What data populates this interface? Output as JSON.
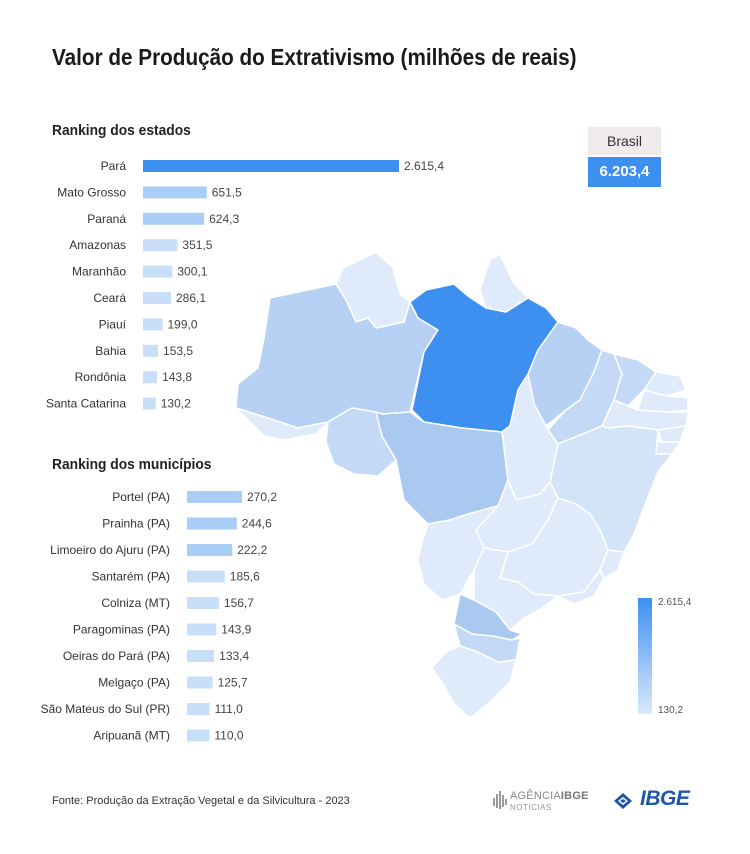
{
  "title": "Valor de Produção do Extrativismo (milhões de reais)",
  "brasil": {
    "label": "Brasil",
    "value": "6.203,4"
  },
  "colors": {
    "bar_top": "#3d8ff0",
    "bar_light": "#a9cdf7",
    "bar_lighter": "#c9def9",
    "map_para": "#3d8ff0",
    "map_high": "#a9c9f1",
    "map_mid": "#c3d9f5",
    "map_low": "#dfeafb"
  },
  "chart_data": [
    {
      "type": "bar",
      "orientation": "horizontal",
      "title": "Ranking dos estados",
      "categories": [
        "Pará",
        "Mato Grosso",
        "Paraná",
        "Amazonas",
        "Maranhão",
        "Ceará",
        "Piauí",
        "Bahia",
        "Rondônia",
        "Santa Catarina"
      ],
      "values": [
        2615.4,
        651.5,
        624.3,
        351.5,
        300.1,
        286.1,
        199.0,
        153.5,
        143.8,
        130.2
      ],
      "labels": [
        "2.615,4",
        "651,5",
        "624,3",
        "351,5",
        "300,1",
        "286,1",
        "199,0",
        "153,5",
        "143,8",
        "130,2"
      ]
    },
    {
      "type": "bar",
      "orientation": "horizontal",
      "title": "Ranking dos municípios",
      "categories": [
        "Portel (PA)",
        "Prainha (PA)",
        "Limoeiro do Ajuru (PA)",
        "Santarém (PA)",
        "Colniza (MT)",
        "Paragominas (PA)",
        "Oeiras do Pará (PA)",
        "Melgaço (PA)",
        "São Mateus do Sul (PR)",
        "Aripuanã (MT)"
      ],
      "values": [
        270.2,
        244.6,
        222.2,
        185.6,
        156.7,
        143.9,
        133.4,
        125.7,
        111.0,
        110.0
      ],
      "labels": [
        "270,2",
        "244,6",
        "222,2",
        "185,6",
        "156,7",
        "143,9",
        "133,4",
        "125,7",
        "111,0",
        "110,0"
      ]
    }
  ],
  "legend": {
    "max": "2.615,4",
    "min": "130,2"
  },
  "source": "Fonte: Produção da Extração Vegetal e da Silvicultura - 2023",
  "logos": {
    "agencia_main_a": "AGÊNCIA",
    "agencia_main_b": "IBGE",
    "agencia_sub": "NOTÍCIAS",
    "ibge": "IBGE"
  }
}
